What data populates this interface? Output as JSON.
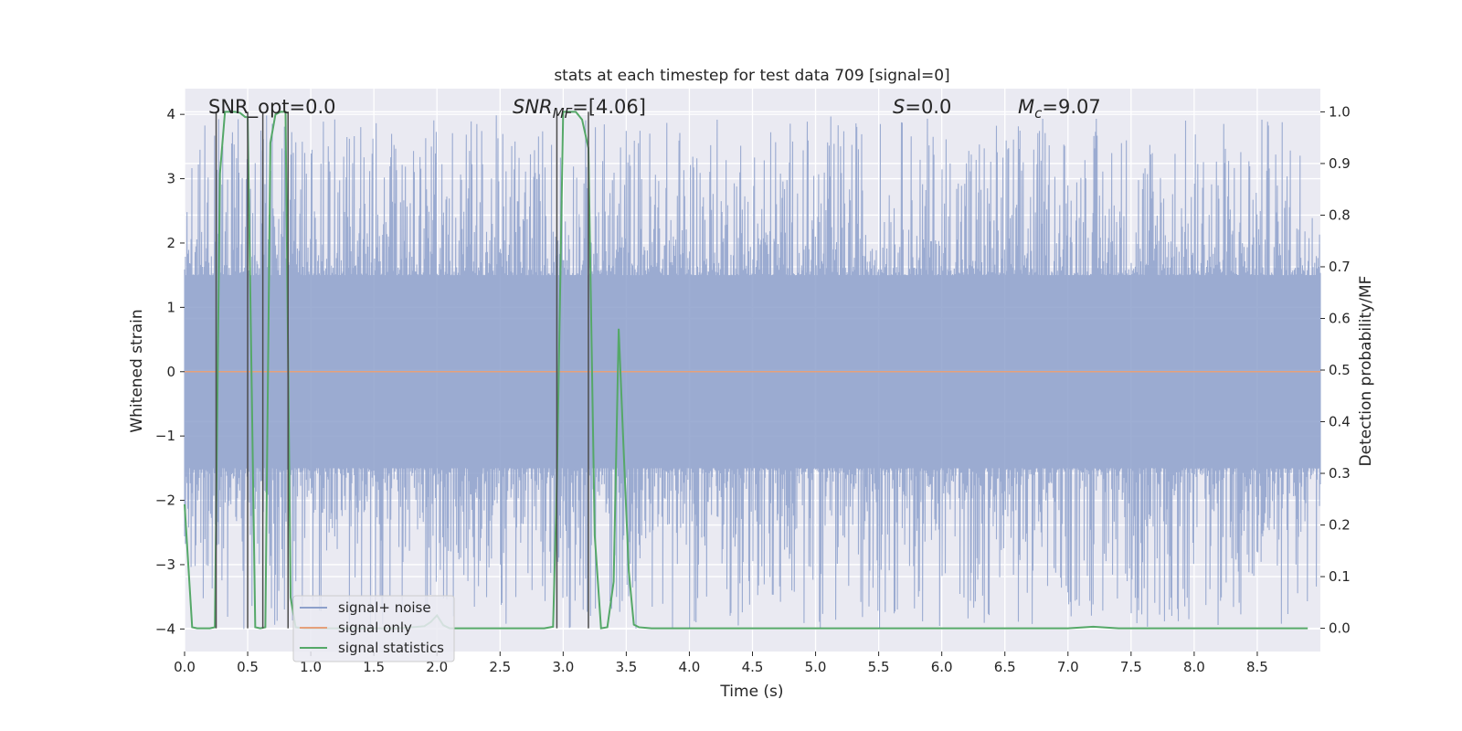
{
  "chart_data": {
    "type": "line",
    "title": "stats at each timestep for test data 709 [signal=0]",
    "xlabel": "Time (s)",
    "ylabel": "Whitened strain",
    "y2label": "Detection probability/MF",
    "xlim": [
      0.0,
      9.0
    ],
    "ylim": [
      -4.35,
      4.4
    ],
    "y2lim": [
      -0.045,
      1.045
    ],
    "xticks": [
      0.0,
      0.5,
      1.0,
      1.5,
      2.0,
      2.5,
      3.0,
      3.5,
      4.0,
      4.5,
      5.0,
      5.5,
      6.0,
      6.5,
      7.0,
      7.5,
      8.0,
      8.5
    ],
    "xtick_labels": [
      "0.0",
      "0.5",
      "1.0",
      "1.5",
      "2.0",
      "2.5",
      "3.0",
      "3.5",
      "4.0",
      "4.5",
      "5.0",
      "5.5",
      "6.0",
      "6.5",
      "7.0",
      "7.5",
      "8.0",
      "8.5"
    ],
    "yticks": [
      -4,
      -3,
      -2,
      -1,
      0,
      1,
      2,
      3,
      4
    ],
    "ytick_labels": [
      "−4",
      "−3",
      "−2",
      "−1",
      "0",
      "1",
      "2",
      "3",
      "4"
    ],
    "y2ticks": [
      0.0,
      0.1,
      0.2,
      0.3,
      0.4,
      0.5,
      0.6,
      0.7,
      0.8,
      0.9,
      1.0
    ],
    "y2tick_labels": [
      "0.0",
      "0.1",
      "0.2",
      "0.3",
      "0.4",
      "0.5",
      "0.6",
      "0.7",
      "0.8",
      "0.9",
      "1.0"
    ],
    "grid": true,
    "legend_position": "lower-left",
    "annotations": {
      "snr_opt": "SNR_opt=0.0",
      "snr_mf_var": "SNR",
      "snr_mf_sub": "MF",
      "snr_mf_val": "=[4.06]",
      "s_var": "S",
      "s_val": "=0.0",
      "mc_var": "M",
      "mc_sub": "c",
      "mc_val": "=9.07"
    },
    "series": [
      {
        "name": "signal+ noise",
        "color": "#8da0cb",
        "kind": "noise",
        "envelope_abs": 1.5,
        "peak_max": 4.0,
        "peak_min": -4.0
      },
      {
        "name": "signal only",
        "color": "#e5a07b",
        "kind": "flat",
        "value": 0.0
      },
      {
        "name": "signal statistics",
        "color": "#55a868",
        "axis": "right",
        "x": [
          0.0,
          0.06,
          0.1,
          0.15,
          0.2,
          0.24,
          0.28,
          0.32,
          0.36,
          0.4,
          0.44,
          0.48,
          0.5,
          0.53,
          0.56,
          0.6,
          0.64,
          0.68,
          0.72,
          0.76,
          0.8,
          0.84,
          0.88,
          0.95,
          1.1,
          1.3,
          1.5,
          1.7,
          1.9,
          1.95,
          2.0,
          2.05,
          2.1,
          2.2,
          2.5,
          2.75,
          2.85,
          2.92,
          2.95,
          3.0,
          3.05,
          3.1,
          3.15,
          3.2,
          3.25,
          3.3,
          3.35,
          3.4,
          3.44,
          3.48,
          3.52,
          3.56,
          3.6,
          3.7,
          3.8,
          4.0,
          5.0,
          6.0,
          7.0,
          7.2,
          7.4,
          8.0,
          8.9
        ],
        "y": [
          0.24,
          0.002,
          0.0,
          0.0,
          0.0,
          0.002,
          0.88,
          1.0,
          1.0,
          1.0,
          0.998,
          0.99,
          0.99,
          0.5,
          0.002,
          0.0,
          0.002,
          0.94,
          0.995,
          1.0,
          1.0,
          0.06,
          0.002,
          0.0,
          0.0,
          0.0,
          0.0,
          0.0,
          0.004,
          0.012,
          0.025,
          0.006,
          0.0,
          0.0,
          0.0,
          0.0,
          0.0,
          0.003,
          0.28,
          1.0,
          1.0,
          1.0,
          0.985,
          0.93,
          0.18,
          0.0,
          0.002,
          0.09,
          0.58,
          0.34,
          0.11,
          0.007,
          0.002,
          0.0,
          0.0,
          0.0,
          0.0,
          0.0,
          0.0,
          0.003,
          0.0,
          0.0,
          0.0
        ]
      }
    ],
    "vertical_markers": {
      "color": "#4c4c4c",
      "x": [
        0.25,
        0.5,
        0.62,
        0.82,
        2.95,
        3.2
      ]
    }
  }
}
